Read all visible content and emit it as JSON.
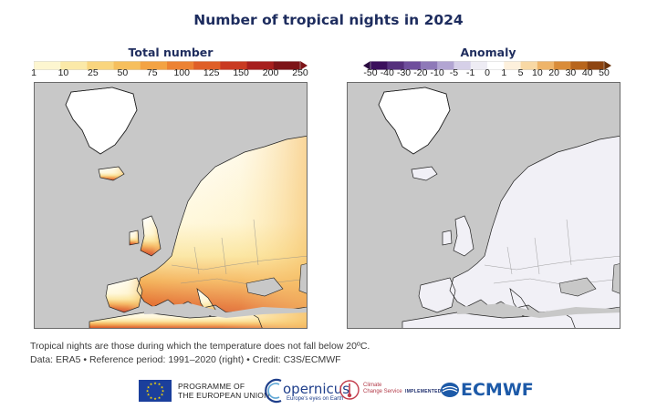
{
  "title": "Number of tropical nights in 2024",
  "left_panel": {
    "title": "Total number",
    "scale": {
      "ticks": [
        "1",
        "10",
        "25",
        "50",
        "75",
        "100",
        "125",
        "150",
        "200",
        "250"
      ],
      "colors": [
        "#fdf6d0",
        "#fbe9a8",
        "#f9d57e",
        "#f6bf5d",
        "#f3a344",
        "#ec8233",
        "#df5f28",
        "#c93a22",
        "#a71f1e",
        "#7d1418"
      ],
      "arrow_color": "#7d1418"
    }
  },
  "right_panel": {
    "title": "Anomaly",
    "scale": {
      "ticks": [
        "-50",
        "-40",
        "-30",
        "-20",
        "-10",
        "-5",
        "-1",
        "0",
        "1",
        "5",
        "10",
        "20",
        "30",
        "40",
        "50"
      ],
      "colors": [
        "#3b0f5c",
        "#55307c",
        "#6f4f9c",
        "#8e79b8",
        "#b2a5d2",
        "#d6d0e8",
        "#eeecf4",
        "#ffffff",
        "#fdf0dc",
        "#f8d8a4",
        "#eeb46a",
        "#d98c3a",
        "#b8651c",
        "#8e4511"
      ],
      "arrow_left_color": "#2a0a40",
      "arrow_right_color": "#6a330c"
    }
  },
  "notes": {
    "line1": "Tropical nights are those during which the temperature does not fall below 20ºC.",
    "line2": "Data: ERA5 • Reference period: 1991–2020 (right) • Credit: C3S/ECMWF"
  },
  "logos": {
    "eu_line1": "PROGRAMME OF",
    "eu_line2": "THE EUROPEAN UNION",
    "copernicus": "opernicus",
    "copernicus_sub": "Europe's eyes on Earth",
    "c3s_line1": "Climate",
    "c3s_line2": "Change Service",
    "implemented_by": "IMPLEMENTED BY",
    "ecmwf": "ECMWF"
  },
  "colors": {
    "ocean": "#c8c8c8",
    "land_base": "#ffffff",
    "title_text": "#1d2c5e"
  }
}
